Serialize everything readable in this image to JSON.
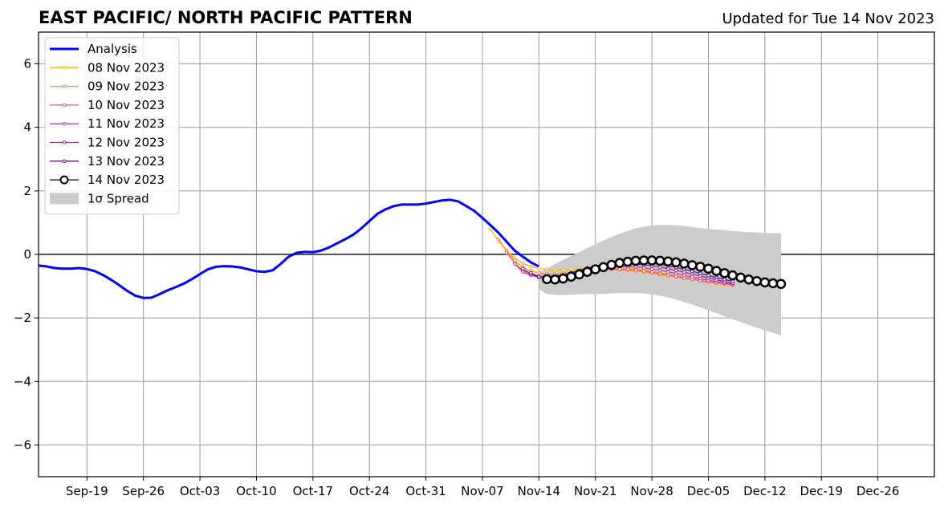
{
  "header": {
    "title": "EAST PACIFIC/ NORTH PACIFIC PATTERN",
    "updated": "Updated for Tue 14 Nov 2023"
  },
  "chart_data": {
    "type": "line",
    "title": "EAST PACIFIC/ NORTH PACIFIC PATTERN",
    "xlabel": "",
    "ylabel": "",
    "x_start": "2023-09-13",
    "xlim_days": [
      0,
      111
    ],
    "ylim": [
      -7,
      7
    ],
    "yticks": [
      -6,
      -4,
      -2,
      0,
      2,
      4,
      6
    ],
    "ytick_labels": [
      "−6",
      "−4",
      "−2",
      "0",
      "2",
      "4",
      "6"
    ],
    "xticks_days": [
      6,
      13,
      20,
      27,
      34,
      41,
      48,
      55,
      62,
      69,
      76,
      83,
      90,
      97,
      104
    ],
    "xtick_labels": [
      "Sep-19",
      "Sep-26",
      "Oct-03",
      "Oct-10",
      "Oct-17",
      "Oct-24",
      "Oct-31",
      "Nov-07",
      "Nov-14",
      "Nov-21",
      "Nov-28",
      "Dec-05",
      "Dec-12",
      "Dec-19",
      "Dec-26"
    ],
    "grid": true,
    "legend_position": "upper-left",
    "colors": {
      "analysis": "#0000ff",
      "spread": "#cccccc",
      "members": [
        "#ffb31a",
        "#f78a3e",
        "#e3626a",
        "#c43f91",
        "#96249f",
        "#5c1294",
        "#000000"
      ]
    },
    "legend": [
      "Analysis",
      "08 Nov 2023",
      "09 Nov 2023",
      "10 Nov 2023",
      "11 Nov 2023",
      "12 Nov 2023",
      "13 Nov 2023",
      "14 Nov 2023",
      "1σ Spread"
    ],
    "analysis": {
      "name": "Analysis",
      "x_days": [
        0,
        1,
        2,
        3,
        4,
        5,
        6,
        7,
        8,
        9,
        10,
        11,
        12,
        13,
        14,
        15,
        16,
        17,
        18,
        19,
        20,
        21,
        22,
        23,
        24,
        25,
        26,
        27,
        28,
        29,
        30,
        31,
        32,
        33,
        34,
        35,
        36,
        37,
        38,
        39,
        40,
        41,
        42,
        43,
        44,
        45,
        46,
        47,
        48,
        49,
        50,
        51,
        52,
        53,
        54,
        55,
        56,
        57,
        58,
        59,
        60,
        61,
        62
      ],
      "values": [
        -0.35,
        -0.38,
        -0.43,
        -0.45,
        -0.45,
        -0.43,
        -0.46,
        -0.53,
        -0.65,
        -0.8,
        -0.97,
        -1.15,
        -1.3,
        -1.37,
        -1.36,
        -1.25,
        -1.13,
        -1.03,
        -0.92,
        -0.78,
        -0.62,
        -0.47,
        -0.39,
        -0.37,
        -0.38,
        -0.41,
        -0.47,
        -0.53,
        -0.55,
        -0.5,
        -0.3,
        -0.07,
        0.05,
        0.08,
        0.07,
        0.12,
        0.22,
        0.35,
        0.48,
        0.62,
        0.82,
        1.05,
        1.28,
        1.42,
        1.52,
        1.57,
        1.57,
        1.57,
        1.6,
        1.65,
        1.7,
        1.72,
        1.67,
        1.52,
        1.37,
        1.15,
        0.92,
        0.68,
        0.4,
        0.12,
        -0.07,
        -0.25,
        -0.38
      ]
    },
    "spread": {
      "name": "1σ Spread",
      "x_days": [
        62,
        63,
        64,
        65,
        66,
        67,
        68,
        69,
        70,
        71,
        72,
        73,
        74,
        75,
        76,
        77,
        78,
        79,
        80,
        81,
        82,
        83,
        84,
        85,
        86,
        87,
        88,
        89,
        90,
        91,
        92
      ],
      "upper": [
        -0.55,
        -0.45,
        -0.3,
        -0.17,
        -0.05,
        0.07,
        0.2,
        0.32,
        0.44,
        0.55,
        0.65,
        0.74,
        0.82,
        0.87,
        0.91,
        0.93,
        0.93,
        0.92,
        0.9,
        0.86,
        0.83,
        0.8,
        0.78,
        0.76,
        0.74,
        0.72,
        0.7,
        0.69,
        0.68,
        0.67,
        0.66
      ],
      "lower": [
        -1.1,
        -1.25,
        -1.28,
        -1.28,
        -1.27,
        -1.26,
        -1.25,
        -1.25,
        -1.24,
        -1.23,
        -1.22,
        -1.22,
        -1.22,
        -1.23,
        -1.26,
        -1.3,
        -1.35,
        -1.42,
        -1.5,
        -1.58,
        -1.67,
        -1.76,
        -1.85,
        -1.95,
        -2.04,
        -2.13,
        -2.22,
        -2.31,
        -2.39,
        -2.47,
        -2.55
      ]
    },
    "series": [
      {
        "name": "08 Nov 2023",
        "x_start_day": 56,
        "values": [
          0.8,
          0.42,
          0.12,
          -0.12,
          -0.28,
          -0.38,
          -0.44,
          -0.47,
          -0.49,
          -0.49,
          -0.47,
          -0.44,
          -0.42,
          -0.4,
          -0.39,
          -0.39,
          -0.4,
          -0.42,
          -0.45,
          -0.49,
          -0.53,
          -0.58,
          -0.63,
          -0.68,
          -0.73,
          -0.78,
          -0.83,
          -0.88,
          -0.92,
          -0.95,
          -0.98
        ]
      },
      {
        "name": "09 Nov 2023",
        "x_start_day": 57,
        "values": [
          0.48,
          0.1,
          -0.2,
          -0.4,
          -0.52,
          -0.58,
          -0.62,
          -0.62,
          -0.6,
          -0.57,
          -0.53,
          -0.5,
          -0.48,
          -0.47,
          -0.47,
          -0.48,
          -0.5,
          -0.52,
          -0.55,
          -0.59,
          -0.63,
          -0.67,
          -0.71,
          -0.75,
          -0.79,
          -0.83,
          -0.86,
          -0.89,
          -0.92,
          -0.95
        ]
      },
      {
        "name": "10 Nov 2023",
        "x_start_day": 58,
        "values": [
          0.05,
          -0.28,
          -0.5,
          -0.62,
          -0.68,
          -0.7,
          -0.68,
          -0.64,
          -0.6,
          -0.56,
          -0.52,
          -0.49,
          -0.47,
          -0.46,
          -0.46,
          -0.47,
          -0.49,
          -0.52,
          -0.56,
          -0.6,
          -0.64,
          -0.69,
          -0.74,
          -0.78,
          -0.82,
          -0.86,
          -0.89,
          -0.92,
          -0.95
        ]
      },
      {
        "name": "11 Nov 2023",
        "x_start_day": 59,
        "values": [
          -0.3,
          -0.55,
          -0.66,
          -0.72,
          -0.72,
          -0.69,
          -0.64,
          -0.58,
          -0.53,
          -0.48,
          -0.44,
          -0.41,
          -0.39,
          -0.38,
          -0.38,
          -0.39,
          -0.42,
          -0.46,
          -0.5,
          -0.55,
          -0.6,
          -0.66,
          -0.71,
          -0.76,
          -0.81,
          -0.86,
          -0.9,
          -0.94
        ]
      },
      {
        "name": "12 Nov 2023",
        "x_start_day": 60,
        "values": [
          -0.45,
          -0.62,
          -0.72,
          -0.74,
          -0.71,
          -0.65,
          -0.58,
          -0.51,
          -0.45,
          -0.4,
          -0.36,
          -0.33,
          -0.31,
          -0.3,
          -0.31,
          -0.33,
          -0.36,
          -0.4,
          -0.45,
          -0.5,
          -0.56,
          -0.62,
          -0.68,
          -0.74,
          -0.8,
          -0.86,
          -0.91
        ]
      },
      {
        "name": "13 Nov 2023",
        "x_start_day": 61,
        "values": [
          -0.58,
          -0.7,
          -0.74,
          -0.72,
          -0.66,
          -0.58,
          -0.5,
          -0.43,
          -0.37,
          -0.32,
          -0.28,
          -0.25,
          -0.24,
          -0.24,
          -0.25,
          -0.28,
          -0.31,
          -0.36,
          -0.41,
          -0.47,
          -0.53,
          -0.6,
          -0.66,
          -0.73,
          -0.79,
          -0.85
        ]
      },
      {
        "name": "14 Nov 2023",
        "x_start_day": 63,
        "values": [
          -0.78,
          -0.79,
          -0.76,
          -0.7,
          -0.63,
          -0.55,
          -0.47,
          -0.4,
          -0.33,
          -0.27,
          -0.23,
          -0.2,
          -0.19,
          -0.19,
          -0.2,
          -0.22,
          -0.25,
          -0.29,
          -0.34,
          -0.39,
          -0.45,
          -0.52,
          -0.59,
          -0.66,
          -0.73,
          -0.79,
          -0.84,
          -0.88,
          -0.91,
          -0.93
        ]
      }
    ]
  }
}
